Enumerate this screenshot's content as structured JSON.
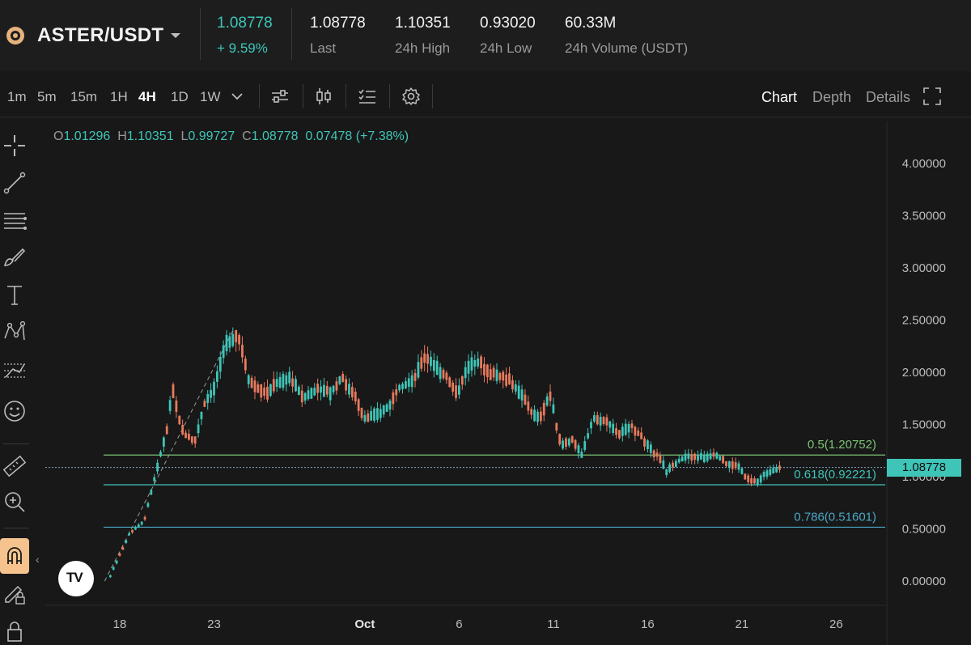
{
  "header": {
    "pair": "ASTER/USDT",
    "price": "1.08778",
    "change": "+ 9.59%",
    "stats": [
      {
        "value": "1.08778",
        "label": "Last"
      },
      {
        "value": "1.10351",
        "label": "24h High"
      },
      {
        "value": "0.93020",
        "label": "24h Low"
      },
      {
        "value": "60.33M",
        "label": "24h Volume (USDT)"
      }
    ]
  },
  "toolbar": {
    "timeframes": [
      "1m",
      "5m",
      "15m",
      "1H",
      "4H",
      "1D",
      "1W"
    ],
    "active_timeframe": "4H",
    "views": [
      "Chart",
      "Depth",
      "Details"
    ],
    "active_view": "Chart"
  },
  "legend": {
    "o_key": "O",
    "o": "1.01296",
    "h_key": "H",
    "h": "1.10351",
    "l_key": "L",
    "l": "0.99727",
    "c_key": "C",
    "c": "1.08778",
    "change": "0.07478 (+7.38%)"
  },
  "chart_data": {
    "type": "candlestick",
    "symbol": "ASTER/USDT",
    "interval": "4H",
    "current_price": 1.08778,
    "current_price_label": "1.08778",
    "y_range": [
      -0.2,
      4.3
    ],
    "y_ticks": [
      {
        "value": 4.0,
        "label": "4.00000"
      },
      {
        "value": 3.5,
        "label": "3.50000"
      },
      {
        "value": 3.0,
        "label": "3.00000"
      },
      {
        "value": 2.5,
        "label": "2.50000"
      },
      {
        "value": 2.0,
        "label": "2.00000"
      },
      {
        "value": 1.5,
        "label": "1.50000"
      },
      {
        "value": 1.0,
        "label": "1.00000"
      },
      {
        "value": 0.5,
        "label": "0.50000"
      },
      {
        "value": 0.0,
        "label": "0.00000"
      }
    ],
    "x_range_days": [
      -1.2,
      38.5
    ],
    "x_ticks": [
      {
        "day": 0,
        "label": "18"
      },
      {
        "day": 5,
        "label": "23"
      },
      {
        "day": 13,
        "label": "Oct"
      },
      {
        "day": 18,
        "label": "6"
      },
      {
        "day": 23,
        "label": "11"
      },
      {
        "day": 28,
        "label": "16"
      },
      {
        "day": 33,
        "label": "21"
      },
      {
        "day": 38,
        "label": "26"
      }
    ],
    "fib_levels": [
      {
        "ratio": "0.5",
        "price": 1.20752,
        "label": "0.5(1.20752)",
        "color": "#7cc576"
      },
      {
        "ratio": "0.618",
        "price": 0.92221,
        "label": "0.618(0.92221)",
        "color": "#3fc5b8"
      },
      {
        "ratio": "0.786",
        "price": 0.51601,
        "label": "0.786(0.51601)",
        "color": "#4aa8c8"
      }
    ],
    "path_days": [
      -0.5,
      0.5,
      1.3,
      1.8,
      2.5,
      2.8,
      3.2,
      3.5,
      4.0,
      4.5,
      5.0,
      5.7,
      6.3,
      6.8,
      7.2,
      7.8,
      8.3,
      9.0,
      9.8,
      10.5,
      11.2,
      11.8,
      12.5,
      13.0,
      13.6,
      14.2,
      14.8,
      15.5,
      16.2,
      16.8,
      17.4,
      17.9,
      18.5,
      19.0,
      19.6,
      20.3,
      20.8,
      21.4,
      21.9,
      22.3,
      22.8,
      23.4,
      24.0,
      24.5,
      25.1,
      25.8,
      26.5,
      27.1,
      27.8,
      28.2,
      28.6,
      29.0,
      29.6,
      30.3,
      31.0,
      31.6,
      32.2,
      32.8,
      33.3,
      33.8,
      34.4,
      35.0
    ],
    "path_values": [
      0.05,
      0.45,
      0.58,
      0.95,
      1.45,
      1.85,
      1.5,
      1.4,
      1.35,
      1.7,
      1.85,
      2.3,
      2.35,
      1.95,
      1.85,
      1.8,
      1.9,
      1.95,
      1.75,
      1.85,
      1.8,
      1.95,
      1.75,
      1.55,
      1.6,
      1.65,
      1.85,
      1.9,
      2.15,
      2.05,
      1.95,
      1.8,
      2.05,
      2.1,
      2.0,
      1.95,
      1.9,
      1.75,
      1.6,
      1.55,
      1.8,
      1.3,
      1.35,
      1.2,
      1.55,
      1.55,
      1.4,
      1.5,
      1.35,
      1.25,
      1.2,
      1.05,
      1.15,
      1.2,
      1.18,
      1.22,
      1.12,
      1.1,
      0.98,
      0.95,
      1.05,
      1.08778
    ]
  },
  "colors": {
    "up": "#3fc5b8",
    "down": "#e87a5d",
    "accent": "#f6c28e",
    "background": "#181818"
  }
}
